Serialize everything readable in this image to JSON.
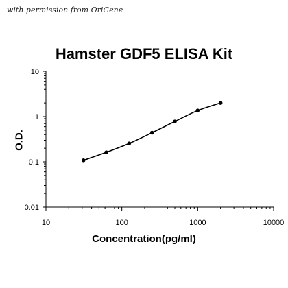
{
  "watermark": "with permission from OriGene",
  "chart_data": {
    "type": "line",
    "title": "Hamster GDF5 ELISA Kit",
    "xlabel": "Concentration(pg/ml)",
    "ylabel": "O.D.",
    "x_scale": "log",
    "y_scale": "log",
    "xlim": [
      10,
      10000
    ],
    "ylim": [
      0.01,
      10
    ],
    "x_ticks": [
      "10",
      "100",
      "1000",
      "10000"
    ],
    "y_ticks": [
      "10",
      "1",
      "0.1",
      "0.01"
    ],
    "grid": false,
    "series": [
      {
        "x": [
          31.25,
          62.5,
          125,
          250,
          500,
          1000,
          2000
        ],
        "y": [
          0.108,
          0.162,
          0.255,
          0.44,
          0.78,
          1.36,
          2.0
        ]
      }
    ]
  }
}
